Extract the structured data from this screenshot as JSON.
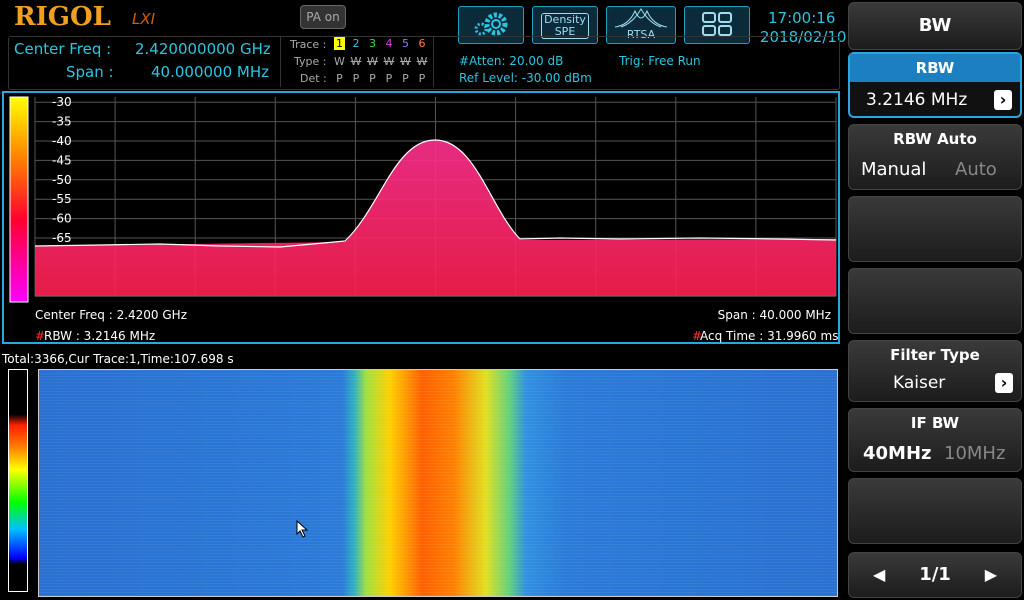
{
  "header": {
    "logo": "RIGOL",
    "logo_sub": "LXI",
    "pa": "PA on",
    "density": "Density",
    "spe": "SPE",
    "rtsa": "RTSA",
    "time": "17:00:16",
    "date": "2018/02/10"
  },
  "status": {
    "center_freq_label": "Center Freq :",
    "center_freq": "2.420000000 GHz",
    "span_label": "Span :",
    "span": "40.000000 MHz",
    "trace_label": "Trace :",
    "traces": [
      "1",
      "2",
      "3",
      "4",
      "5",
      "6"
    ],
    "type_label": "Type :",
    "types": [
      "W",
      "W",
      "W",
      "W",
      "W",
      "W"
    ],
    "det_label": "Det :",
    "dets": [
      "P",
      "P",
      "P",
      "P",
      "P",
      "P"
    ],
    "atten": "#Atten: 20.00 dB",
    "trig": "Trig: Free Run",
    "ref_level": "Ref Level: -30.00 dBm"
  },
  "spectrum": {
    "yticks": [
      -30,
      -35,
      -40,
      -45,
      -50,
      -55,
      -60,
      -65
    ],
    "center_freq": "Center Freq : 2.4200 GHz",
    "span": "Span : 40.000 MHz",
    "rbw_flag": "#",
    "rbw": "RBW : 3.2146 MHz",
    "acq_flag": "#",
    "acq_time": "Acq Time : 31.9960 ms"
  },
  "waterfall": {
    "status": "Total:3366,Cur Trace:1,Time:107.698 s"
  },
  "menu": {
    "title": "BW",
    "rbw": {
      "label": "RBW",
      "value": "3.2146 MHz"
    },
    "rbw_auto": {
      "label": "RBW Auto",
      "on": "Manual",
      "off": "Auto"
    },
    "filter_type": {
      "label": "Filter Type",
      "value": "Kaiser"
    },
    "if_bw": {
      "label": "IF BW",
      "on": "40MHz",
      "off": "10MHz"
    },
    "page": "1/1"
  }
}
